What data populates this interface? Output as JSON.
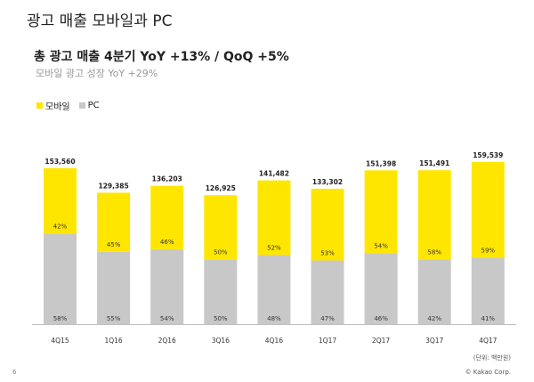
{
  "slide": {
    "title": "광고 매출  모바일과 PC",
    "headline": "총 광고 매출 4분기 YoY +13% / QoQ +5%",
    "subhead": "모바일 광고 성장 YoY +29%",
    "unit_note": "(단위: 백만원)",
    "page_number": "6",
    "copyright": "© Kakao Corp."
  },
  "colors": {
    "mobile": "#FFE600",
    "pc": "#C8C8C8"
  },
  "chart_data": {
    "type": "bar",
    "stacked": true,
    "categories": [
      "4Q15",
      "1Q16",
      "2Q16",
      "3Q16",
      "4Q16",
      "1Q17",
      "2Q17",
      "3Q17",
      "4Q17"
    ],
    "totals": [
      153560,
      129385,
      136203,
      126925,
      141482,
      133302,
      151398,
      151491,
      159539
    ],
    "total_labels": [
      "153,560",
      "129,385",
      "136,203",
      "126,925",
      "141,482",
      "133,302",
      "151,398",
      "151,491",
      "159,539"
    ],
    "legend_position": "top-left",
    "series": [
      {
        "name": "모바일",
        "shares": [
          42,
          45,
          46,
          50,
          52,
          53,
          54,
          58,
          59
        ],
        "labels": [
          "42%",
          "45%",
          "46%",
          "50%",
          "52%",
          "53%",
          "54%",
          "58%",
          "59%"
        ]
      },
      {
        "name": "PC",
        "shares": [
          58,
          55,
          54,
          50,
          48,
          47,
          46,
          42,
          41
        ],
        "labels": [
          "58%",
          "55%",
          "54%",
          "50%",
          "48%",
          "47%",
          "46%",
          "42%",
          "41%"
        ]
      }
    ],
    "ylim": [
      0,
      170000
    ],
    "grid": false
  }
}
